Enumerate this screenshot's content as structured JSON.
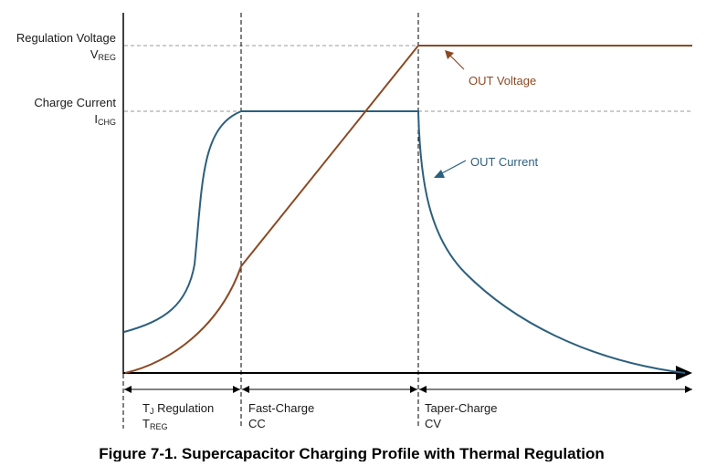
{
  "diagram": {
    "y_labels": {
      "regulation_voltage": "Regulation Voltage",
      "vreg_main": "V",
      "vreg_sub": "REG",
      "charge_current": "Charge Current",
      "ichg_main": "I",
      "ichg_sub": "CHG"
    },
    "annotations": {
      "out_voltage": "OUT Voltage",
      "out_current": "OUT Current"
    },
    "phases": [
      {
        "line1_main": "T",
        "line1_sub": "J",
        "line1_rest": " Regulation",
        "line2_main": "T",
        "line2_sub": "REG"
      },
      {
        "line1": "Fast-Charge",
        "line2": "CC"
      },
      {
        "line1": "Taper-Charge",
        "line2": "CV"
      }
    ],
    "colors": {
      "voltage": "#8B4A24",
      "current": "#2D5F7E",
      "axis": "#000000",
      "guide": "#9a9a9a"
    }
  },
  "caption": "Figure 7-1. Supercapacitor Charging Profile with Thermal Regulation"
}
